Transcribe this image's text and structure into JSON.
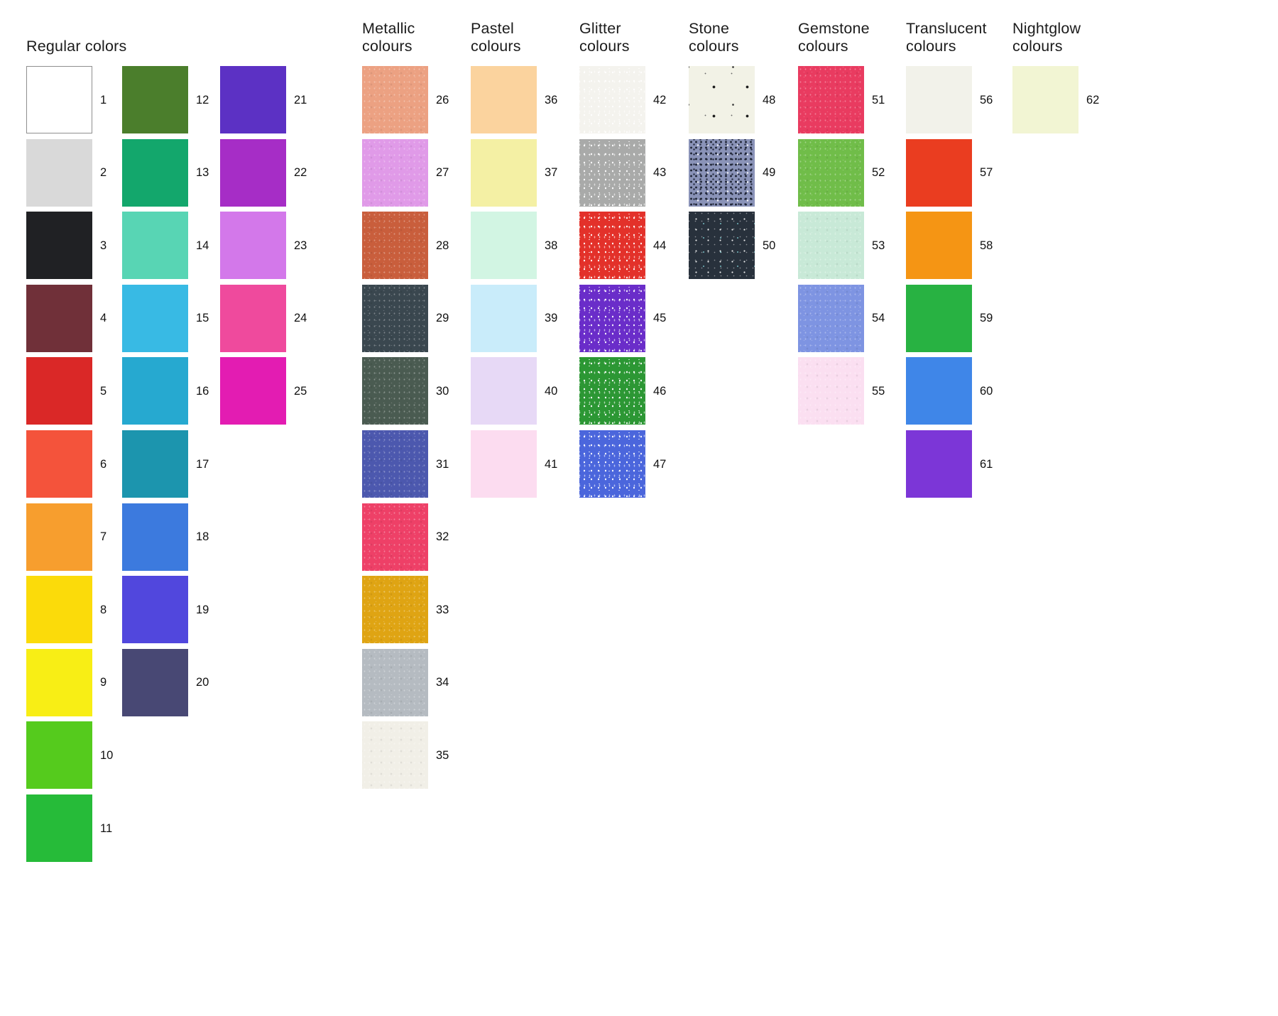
{
  "page": {
    "background": "#ffffff",
    "text_color": "#1c1c1c"
  },
  "groups": [
    {
      "id": "regular",
      "title": "Regular colors",
      "title_lines": [
        "Regular colors"
      ],
      "columns": [
        {
          "swatches": [
            {
              "num": "1",
              "color": "#ffffff",
              "border": true,
              "texture": "none"
            },
            {
              "num": "2",
              "color": "#d9d9d9",
              "border": false,
              "texture": "none"
            },
            {
              "num": "3",
              "color": "#202124",
              "border": false,
              "texture": "none"
            },
            {
              "num": "4",
              "color": "#703039",
              "border": false,
              "texture": "none"
            },
            {
              "num": "5",
              "color": "#da2827",
              "border": false,
              "texture": "none"
            },
            {
              "num": "6",
              "color": "#f4533b",
              "border": false,
              "texture": "none"
            },
            {
              "num": "7",
              "color": "#f79e2e",
              "border": false,
              "texture": "none"
            },
            {
              "num": "8",
              "color": "#fbdb0a",
              "border": false,
              "texture": "none"
            },
            {
              "num": "9",
              "color": "#f8ee15",
              "border": false,
              "texture": "none"
            },
            {
              "num": "10",
              "color": "#55cb1d",
              "border": false,
              "texture": "none"
            },
            {
              "num": "11",
              "color": "#26bb39",
              "border": false,
              "texture": "none"
            }
          ]
        },
        {
          "swatches": [
            {
              "num": "12",
              "color": "#4b7e2c",
              "border": false,
              "texture": "none"
            },
            {
              "num": "13",
              "color": "#13a76c",
              "border": false,
              "texture": "none"
            },
            {
              "num": "14",
              "color": "#58d5b4",
              "border": false,
              "texture": "none"
            },
            {
              "num": "15",
              "color": "#38bae4",
              "border": false,
              "texture": "none"
            },
            {
              "num": "16",
              "color": "#26a9d0",
              "border": false,
              "texture": "none"
            },
            {
              "num": "17",
              "color": "#1c95ae",
              "border": false,
              "texture": "none"
            },
            {
              "num": "18",
              "color": "#3c7ade",
              "border": false,
              "texture": "none"
            },
            {
              "num": "19",
              "color": "#5147dd",
              "border": false,
              "texture": "none"
            },
            {
              "num": "20",
              "color": "#484874",
              "border": false,
              "texture": "none"
            }
          ]
        },
        {
          "swatches": [
            {
              "num": "21",
              "color": "#5c31c4",
              "border": false,
              "texture": "none"
            },
            {
              "num": "22",
              "color": "#a62dc6",
              "border": false,
              "texture": "none"
            },
            {
              "num": "23",
              "color": "#d378ea",
              "border": false,
              "texture": "none"
            },
            {
              "num": "24",
              "color": "#ef4a9d",
              "border": false,
              "texture": "none"
            },
            {
              "num": "25",
              "color": "#e31cb2",
              "border": false,
              "texture": "none"
            }
          ]
        }
      ]
    },
    {
      "id": "metallic",
      "title": "Metallic colours",
      "title_lines": [
        "Metallic",
        "colours"
      ],
      "columns": [
        {
          "swatches": [
            {
              "num": "26",
              "color": "#eca182",
              "border": false,
              "texture": "metallic"
            },
            {
              "num": "27",
              "color": "#e09ae8",
              "border": false,
              "texture": "metallic"
            },
            {
              "num": "28",
              "color": "#c95e3c",
              "border": false,
              "texture": "metallic"
            },
            {
              "num": "29",
              "color": "#3a474f",
              "border": false,
              "texture": "metallic"
            },
            {
              "num": "30",
              "color": "#4a5b51",
              "border": false,
              "texture": "metallic"
            },
            {
              "num": "31",
              "color": "#4c58ae",
              "border": false,
              "texture": "metallic"
            },
            {
              "num": "32",
              "color": "#ee4067",
              "border": false,
              "texture": "metallic"
            },
            {
              "num": "33",
              "color": "#dfa413",
              "border": false,
              "texture": "metallic"
            },
            {
              "num": "34",
              "color": "#b5bbc1",
              "border": false,
              "texture": "metallic"
            },
            {
              "num": "35",
              "color": "#f1efe7",
              "border": false,
              "texture": "metallic"
            }
          ]
        }
      ]
    },
    {
      "id": "pastel",
      "title": "Pastel colours",
      "title_lines": [
        "Pastel",
        "colours"
      ],
      "columns": [
        {
          "swatches": [
            {
              "num": "36",
              "color": "#fbd39e",
              "border": false,
              "texture": "none"
            },
            {
              "num": "37",
              "color": "#f4f0a4",
              "border": false,
              "texture": "none"
            },
            {
              "num": "38",
              "color": "#d2f5e3",
              "border": false,
              "texture": "none"
            },
            {
              "num": "39",
              "color": "#c9ecfa",
              "border": false,
              "texture": "none"
            },
            {
              "num": "40",
              "color": "#e7d9f6",
              "border": false,
              "texture": "none"
            },
            {
              "num": "41",
              "color": "#fcdcf0",
              "border": false,
              "texture": "none"
            }
          ]
        }
      ]
    },
    {
      "id": "glitter",
      "title": "Glitter colours",
      "title_lines": [
        "Glitter",
        "colours"
      ],
      "columns": [
        {
          "swatches": [
            {
              "num": "42",
              "color": "#f4f3ee",
              "border": false,
              "texture": "glitter"
            },
            {
              "num": "43",
              "color": "#a9aaa9",
              "border": false,
              "texture": "glitter"
            },
            {
              "num": "44",
              "color": "#e3312a",
              "border": false,
              "texture": "glitter"
            },
            {
              "num": "45",
              "color": "#6a2dc9",
              "border": false,
              "texture": "glitter"
            },
            {
              "num": "46",
              "color": "#2c9734",
              "border": false,
              "texture": "glitter"
            },
            {
              "num": "47",
              "color": "#4b66dc",
              "border": false,
              "texture": "glitter"
            }
          ]
        }
      ]
    },
    {
      "id": "stone",
      "title": "Stone colours",
      "title_lines": [
        "Stone",
        "colours"
      ],
      "columns": [
        {
          "swatches": [
            {
              "num": "48",
              "color": "#f2f2e6",
              "border": false,
              "texture": "stone-light"
            },
            {
              "num": "49",
              "color": "#8a93b8",
              "border": false,
              "texture": "stone-blue"
            },
            {
              "num": "50",
              "color": "#28313c",
              "border": false,
              "texture": "stone-dark"
            }
          ]
        }
      ]
    },
    {
      "id": "gemstone",
      "title": "Gemstone colours",
      "title_lines": [
        "Gemstone",
        "colours"
      ],
      "columns": [
        {
          "swatches": [
            {
              "num": "51",
              "color": "#e93b60",
              "border": false,
              "texture": "metallic"
            },
            {
              "num": "52",
              "color": "#70bd49",
              "border": false,
              "texture": "metallic"
            },
            {
              "num": "53",
              "color": "#c8e9d7",
              "border": false,
              "texture": "metallic"
            },
            {
              "num": "54",
              "color": "#7e94e2",
              "border": false,
              "texture": "metallic"
            },
            {
              "num": "55",
              "color": "#fbdff1",
              "border": false,
              "texture": "metallic"
            }
          ]
        }
      ]
    },
    {
      "id": "translucent",
      "title": "Translucent colours",
      "title_lines": [
        "Translucent",
        "colours"
      ],
      "columns": [
        {
          "swatches": [
            {
              "num": "56",
              "color": "#f2f2ea",
              "border": false,
              "texture": "none"
            },
            {
              "num": "57",
              "color": "#ea3d20",
              "border": false,
              "texture": "none"
            },
            {
              "num": "58",
              "color": "#f59514",
              "border": false,
              "texture": "none"
            },
            {
              "num": "59",
              "color": "#28b242",
              "border": false,
              "texture": "none"
            },
            {
              "num": "60",
              "color": "#3f86e8",
              "border": false,
              "texture": "none"
            },
            {
              "num": "61",
              "color": "#7c36d7",
              "border": false,
              "texture": "none"
            }
          ]
        }
      ]
    },
    {
      "id": "nightglow",
      "title": "Nightglow colours",
      "title_lines": [
        "Nightglow",
        "colours"
      ],
      "columns": [
        {
          "swatches": [
            {
              "num": "62",
              "color": "#f2f5d3",
              "border": false,
              "texture": "none"
            }
          ]
        }
      ]
    }
  ]
}
